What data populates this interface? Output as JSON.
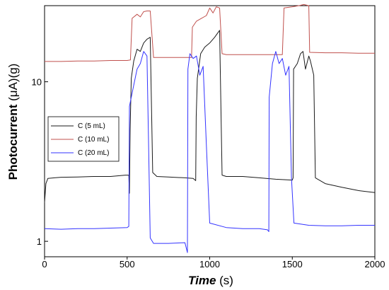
{
  "chart_data": {
    "type": "line",
    "xlabel": {
      "main": "Time",
      "unit": " (s)"
    },
    "ylabel": {
      "main": "Photocurrent ",
      "unit": "(μA)(g)"
    },
    "xlim": [
      0,
      2000
    ],
    "ylim": [
      0.8,
      30
    ],
    "yscale": "log",
    "xticks": [
      0,
      500,
      1000,
      1500,
      2000
    ],
    "xtick_labels": [
      "0",
      "500",
      "1000",
      "1500",
      "2000"
    ],
    "yticks": [
      1,
      10
    ],
    "ytick_labels": [
      "1",
      "10"
    ],
    "grid": false,
    "legend": "center-left",
    "series": [
      {
        "name": "C  (5 mL)",
        "color": "#1a1a1a",
        "points": [
          [
            0,
            1.75
          ],
          [
            8,
            2.3
          ],
          [
            20,
            2.48
          ],
          [
            60,
            2.5
          ],
          [
            100,
            2.52
          ],
          [
            200,
            2.53
          ],
          [
            300,
            2.55
          ],
          [
            400,
            2.55
          ],
          [
            490,
            2.6
          ],
          [
            510,
            2.6
          ],
          [
            514,
            2.0
          ],
          [
            518,
            5.0
          ],
          [
            525,
            10.5
          ],
          [
            540,
            13.5
          ],
          [
            560,
            16.0
          ],
          [
            580,
            15.5
          ],
          [
            600,
            17.5
          ],
          [
            620,
            18.5
          ],
          [
            640,
            19.0
          ],
          [
            655,
            2.7
          ],
          [
            680,
            2.55
          ],
          [
            750,
            2.53
          ],
          [
            850,
            2.5
          ],
          [
            900,
            2.48
          ],
          [
            915,
            2.4
          ],
          [
            918,
            6.0
          ],
          [
            925,
            10.5
          ],
          [
            945,
            15.0
          ],
          [
            970,
            16.5
          ],
          [
            1000,
            17.5
          ],
          [
            1030,
            19.0
          ],
          [
            1060,
            21.0
          ],
          [
            1075,
            2.6
          ],
          [
            1100,
            2.55
          ],
          [
            1200,
            2.55
          ],
          [
            1300,
            2.5
          ],
          [
            1400,
            2.45
          ],
          [
            1500,
            2.42
          ],
          [
            1505,
            2.5
          ],
          [
            1508,
            12.0
          ],
          [
            1530,
            13.0
          ],
          [
            1550,
            15.0
          ],
          [
            1565,
            15.5
          ],
          [
            1580,
            12.0
          ],
          [
            1600,
            14.5
          ],
          [
            1610,
            13.5
          ],
          [
            1630,
            11.0
          ],
          [
            1640,
            2.5
          ],
          [
            1700,
            2.3
          ],
          [
            1800,
            2.18
          ],
          [
            1900,
            2.08
          ],
          [
            2000,
            2.02
          ]
        ]
      },
      {
        "name": "C (10 mL)",
        "color": "#c0504d",
        "points": [
          [
            0,
            13.4
          ],
          [
            100,
            13.4
          ],
          [
            200,
            13.5
          ],
          [
            300,
            13.5
          ],
          [
            400,
            13.6
          ],
          [
            500,
            13.6
          ],
          [
            520,
            13.7
          ],
          [
            530,
            25.0
          ],
          [
            560,
            26.5
          ],
          [
            580,
            25.5
          ],
          [
            600,
            27.5
          ],
          [
            620,
            27.8
          ],
          [
            640,
            27.8
          ],
          [
            660,
            14.2
          ],
          [
            700,
            14.2
          ],
          [
            800,
            14.2
          ],
          [
            880,
            14.2
          ],
          [
            890,
            14.2
          ],
          [
            895,
            22.0
          ],
          [
            920,
            24.0
          ],
          [
            950,
            25.0
          ],
          [
            980,
            26.0
          ],
          [
            1000,
            29.0
          ],
          [
            1020,
            27.0
          ],
          [
            1040,
            29.5
          ],
          [
            1060,
            29.0
          ],
          [
            1075,
            15.0
          ],
          [
            1100,
            14.8
          ],
          [
            1200,
            14.8
          ],
          [
            1300,
            14.8
          ],
          [
            1400,
            14.8
          ],
          [
            1440,
            14.8
          ],
          [
            1450,
            29.0
          ],
          [
            1500,
            29.5
          ],
          [
            1540,
            30.0
          ],
          [
            1570,
            30.5
          ],
          [
            1600,
            30.0
          ],
          [
            1605,
            15.3
          ],
          [
            1700,
            15.2
          ],
          [
            1800,
            15.2
          ],
          [
            1900,
            15.1
          ],
          [
            2000,
            15.1
          ]
        ]
      },
      {
        "name": "C  (20 mL)",
        "color": "#3333ff",
        "points": [
          [
            0,
            1.2
          ],
          [
            100,
            1.19
          ],
          [
            200,
            1.2
          ],
          [
            300,
            1.2
          ],
          [
            400,
            1.21
          ],
          [
            500,
            1.22
          ],
          [
            510,
            1.24
          ],
          [
            514,
            7.0
          ],
          [
            530,
            8.5
          ],
          [
            560,
            12.0
          ],
          [
            580,
            13.0
          ],
          [
            600,
            15.5
          ],
          [
            620,
            14.5
          ],
          [
            630,
            4.0
          ],
          [
            640,
            1.05
          ],
          [
            660,
            0.97
          ],
          [
            750,
            0.97
          ],
          [
            850,
            0.98
          ],
          [
            865,
            0.85
          ],
          [
            868,
            12.0
          ],
          [
            880,
            15.0
          ],
          [
            900,
            14.0
          ],
          [
            920,
            14.5
          ],
          [
            940,
            11.0
          ],
          [
            960,
            12.5
          ],
          [
            980,
            4.0
          ],
          [
            1000,
            1.3
          ],
          [
            1100,
            1.22
          ],
          [
            1200,
            1.2
          ],
          [
            1300,
            1.2
          ],
          [
            1350,
            1.18
          ],
          [
            1358,
            1.15
          ],
          [
            1360,
            8.0
          ],
          [
            1380,
            13.0
          ],
          [
            1400,
            15.5
          ],
          [
            1420,
            13.0
          ],
          [
            1440,
            14.0
          ],
          [
            1460,
            11.0
          ],
          [
            1480,
            12.5
          ],
          [
            1495,
            2.5
          ],
          [
            1510,
            1.3
          ],
          [
            1600,
            1.26
          ],
          [
            1700,
            1.25
          ],
          [
            1800,
            1.25
          ],
          [
            1900,
            1.26
          ],
          [
            2000,
            1.26
          ]
        ]
      }
    ]
  }
}
